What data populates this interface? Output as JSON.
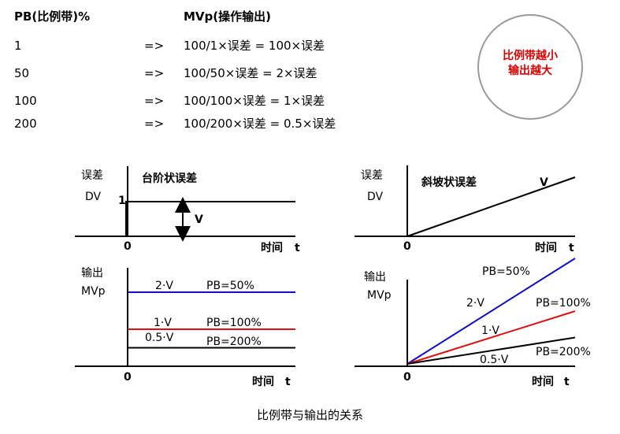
{
  "table": {
    "header_pb": "PB(比例带)%",
    "header_mv": "MVp(操作输出)",
    "rows": [
      {
        "pb": "1",
        "arrow": "=>",
        "formula": "100/1×误差 = 100×误差"
      },
      {
        "pb": "50",
        "arrow": "=>",
        "formula": "100/50×误差 = 2×误差"
      },
      {
        "pb": "100",
        "arrow": "=>",
        "formula": "100/100×误差 = 1×误差"
      },
      {
        "pb": "200",
        "arrow": "=>",
        "formula": "100/200×误差 = 0.5×误差"
      }
    ]
  },
  "callout": {
    "line1": "比例带越小",
    "line2": "输出越大",
    "color": "#e00000"
  },
  "step": {
    "error_label": "误差",
    "dv_label": "DV",
    "title": "台阶状误差",
    "one_label": "1",
    "v_label": "V",
    "origin_top": "0",
    "time_top": "时间",
    "t_top": "t",
    "out_label": "输出",
    "mvp_label": "MVp",
    "lines": [
      {
        "gain_label": "2·V",
        "pb_label": "PB=50%",
        "level": 2,
        "color": "#1010c8"
      },
      {
        "gain_label": "1·V",
        "pb_label": "PB=100%",
        "level": 1,
        "color": "#e01010"
      },
      {
        "gain_label": "0.5·V",
        "pb_label": "PB=200%",
        "level": 0.5,
        "color": "#000000"
      }
    ],
    "origin_bottom": "0",
    "time_bottom": "时间",
    "t_bottom": "t"
  },
  "ramp": {
    "error_label": "误差",
    "dv_label": "DV",
    "title": "斜坡状误差",
    "v_label": "V",
    "origin_top": "0",
    "time_top": "时间",
    "t_top": "t",
    "out_label": "输出",
    "mvp_label": "MVp",
    "lines": [
      {
        "gain_label": "2·V",
        "pb_label": "PB=50%",
        "slope": 2,
        "color": "#1010c8"
      },
      {
        "gain_label": "1·V",
        "pb_label": "PB=100%",
        "slope": 1,
        "color": "#e01010"
      },
      {
        "gain_label": "0.5·V",
        "pb_label": "PB=200%",
        "slope": 0.5,
        "color": "#000000"
      }
    ],
    "origin_bottom": "0",
    "time_bottom": "时间",
    "t_bottom": "t"
  },
  "caption": "比例带与输出的关系"
}
